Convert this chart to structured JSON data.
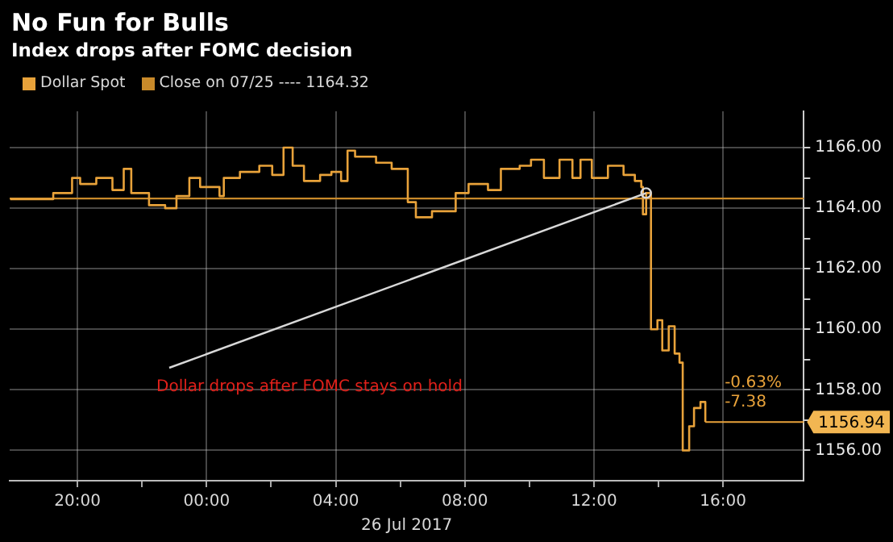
{
  "chart_data": {
    "type": "step",
    "title": "No Fun for Bulls",
    "subtitle": "Index drops after FOMC decision",
    "xlabel": "26 Jul 2017",
    "x": [
      "2017-07-25T17:55",
      "2017-07-25T19:15",
      "2017-07-25T19:50",
      "2017-07-25T20:05",
      "2017-07-25T20:35",
      "2017-07-25T21:05",
      "2017-07-25T21:26",
      "2017-07-25T21:40",
      "2017-07-25T22:13",
      "2017-07-25T22:43",
      "2017-07-25T23:04",
      "2017-07-25T23:28",
      "2017-07-25T23:48",
      "2017-07-26T00:24",
      "2017-07-26T00:32",
      "2017-07-26T01:02",
      "2017-07-26T01:38",
      "2017-07-26T02:02",
      "2017-07-26T02:23",
      "2017-07-26T02:40",
      "2017-07-26T03:01",
      "2017-07-26T03:31",
      "2017-07-26T03:52",
      "2017-07-26T04:10",
      "2017-07-26T04:22",
      "2017-07-26T04:36",
      "2017-07-26T05:15",
      "2017-07-26T05:44",
      "2017-07-26T06:14",
      "2017-07-26T06:29",
      "2017-07-26T06:59",
      "2017-07-26T07:20",
      "2017-07-26T07:43",
      "2017-07-26T08:07",
      "2017-07-26T08:43",
      "2017-07-26T09:07",
      "2017-07-26T09:42",
      "2017-07-26T10:03",
      "2017-07-26T10:27",
      "2017-07-26T10:56",
      "2017-07-26T11:20",
      "2017-07-26T11:35",
      "2017-07-26T11:56",
      "2017-07-26T12:26",
      "2017-07-26T12:55",
      "2017-07-26T13:16",
      "2017-07-26T13:28",
      "2017-07-26T13:31",
      "2017-07-26T13:37",
      "2017-07-26T13:46",
      "2017-07-26T13:58",
      "2017-07-26T14:07",
      "2017-07-26T14:19",
      "2017-07-26T14:30",
      "2017-07-26T14:39",
      "2017-07-26T14:45",
      "2017-07-26T14:57",
      "2017-07-26T15:06",
      "2017-07-26T15:18",
      "2017-07-26T15:27"
    ],
    "series": [
      {
        "name": "Dollar Spot",
        "color": "#e8a23a",
        "values": [
          1164.3,
          1164.5,
          1165.0,
          1164.8,
          1165.0,
          1164.6,
          1165.3,
          1164.5,
          1164.1,
          1164.0,
          1164.4,
          1165.0,
          1164.7,
          1164.4,
          1165.0,
          1165.2,
          1165.4,
          1165.1,
          1166.0,
          1165.4,
          1164.9,
          1165.1,
          1165.2,
          1164.9,
          1165.9,
          1165.7,
          1165.5,
          1165.3,
          1164.2,
          1163.7,
          1163.9,
          1163.9,
          1164.5,
          1164.8,
          1164.6,
          1165.3,
          1165.4,
          1165.6,
          1165.0,
          1165.6,
          1165.0,
          1165.6,
          1165.0,
          1165.4,
          1165.1,
          1164.9,
          1164.7,
          1163.8,
          1164.5,
          1160.0,
          1160.3,
          1159.3,
          1160.1,
          1159.2,
          1158.9,
          1156.0,
          1156.8,
          1157.4,
          1157.6,
          1156.94
        ]
      }
    ],
    "xlim": [
      "2017-07-25T17:54",
      "2017-07-26T18:30"
    ],
    "xticks": [
      {
        "value": "2017-07-25T20:00",
        "label": "20:00"
      },
      {
        "value": "2017-07-25T22:00",
        "label": null
      },
      {
        "value": "2017-07-26T00:00",
        "label": "00:00"
      },
      {
        "value": "2017-07-26T02:00",
        "label": null
      },
      {
        "value": "2017-07-26T04:00",
        "label": "04:00"
      },
      {
        "value": "2017-07-26T06:00",
        "label": null
      },
      {
        "value": "2017-07-26T08:00",
        "label": "08:00"
      },
      {
        "value": "2017-07-26T10:00",
        "label": null
      },
      {
        "value": "2017-07-26T12:00",
        "label": "12:00"
      },
      {
        "value": "2017-07-26T14:00",
        "label": null
      },
      {
        "value": "2017-07-26T16:00",
        "label": "16:00"
      }
    ],
    "ylim": [
      1155,
      1167.2
    ],
    "yticks": [
      {
        "value": 1156,
        "label": "1156.00"
      },
      {
        "value": 1157,
        "label": null
      },
      {
        "value": 1158,
        "label": "1158.00"
      },
      {
        "value": 1159,
        "label": null
      },
      {
        "value": 1160,
        "label": "1160.00"
      },
      {
        "value": 1161,
        "label": null
      },
      {
        "value": 1162,
        "label": "1162.00"
      },
      {
        "value": 1163,
        "label": null
      },
      {
        "value": 1164,
        "label": "1164.00"
      },
      {
        "value": 1165,
        "label": null
      },
      {
        "value": 1166,
        "label": "1166.00"
      }
    ],
    "ref_lines": [
      {
        "axis": "y",
        "value": 1164.32,
        "label": "Close on 07/25 ---- 1164.32",
        "color": "#c98a2a"
      }
    ],
    "annotations": [
      {
        "text": "Dollar drops after FOMC stays on hold",
        "x": "2017-07-26T13:37",
        "y": 1164.5
      },
      {
        "text": "1156.94",
        "x": "2017-07-26T15:27",
        "y": 1156.94
      },
      "-0.63%",
      "-7.38"
    ],
    "grid": true,
    "legend": "top left"
  }
}
